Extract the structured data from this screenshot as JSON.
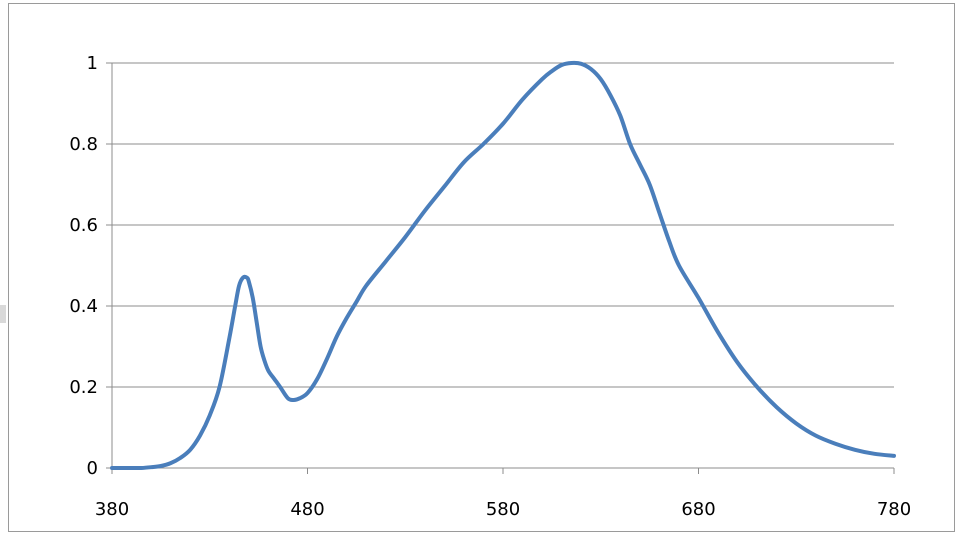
{
  "chart_data": {
    "type": "line",
    "title": "",
    "xlabel": "",
    "ylabel": "",
    "xlim": [
      380,
      780
    ],
    "ylim": [
      0,
      1
    ],
    "x_ticks": [
      "380",
      "480",
      "580",
      "680",
      "780"
    ],
    "y_ticks": [
      "0",
      "0.2",
      "0.4",
      "0.6",
      "0.8",
      "1"
    ],
    "grid": "horizontal",
    "legend": "none",
    "series": [
      {
        "color": "#4a7ebb",
        "x": [
          380,
          385,
          390,
          395,
          400,
          405,
          410,
          415,
          420,
          425,
          430,
          435,
          440,
          443,
          445,
          447,
          449,
          450,
          452,
          454,
          456,
          458,
          460,
          463,
          466,
          470,
          473,
          476,
          480,
          485,
          490,
          495,
          500,
          505,
          510,
          520,
          530,
          540,
          550,
          560,
          570,
          580,
          590,
          600,
          605,
          610,
          615,
          620,
          625,
          630,
          635,
          640,
          645,
          650,
          655,
          660,
          665,
          670,
          680,
          690,
          700,
          710,
          720,
          730,
          740,
          750,
          760,
          770,
          780
        ],
        "y": [
          0.0,
          0.0,
          0.0,
          0.0,
          0.002,
          0.005,
          0.012,
          0.025,
          0.045,
          0.08,
          0.13,
          0.2,
          0.32,
          0.4,
          0.45,
          0.47,
          0.47,
          0.46,
          0.42,
          0.36,
          0.3,
          0.265,
          0.24,
          0.22,
          0.2,
          0.172,
          0.168,
          0.172,
          0.185,
          0.22,
          0.27,
          0.325,
          0.37,
          0.41,
          0.45,
          0.51,
          0.57,
          0.635,
          0.695,
          0.755,
          0.8,
          0.85,
          0.91,
          0.96,
          0.98,
          0.995,
          1.0,
          0.998,
          0.985,
          0.96,
          0.92,
          0.87,
          0.8,
          0.75,
          0.7,
          0.63,
          0.56,
          0.5,
          0.42,
          0.335,
          0.26,
          0.2,
          0.15,
          0.11,
          0.08,
          0.06,
          0.045,
          0.035,
          0.03
        ]
      }
    ]
  }
}
